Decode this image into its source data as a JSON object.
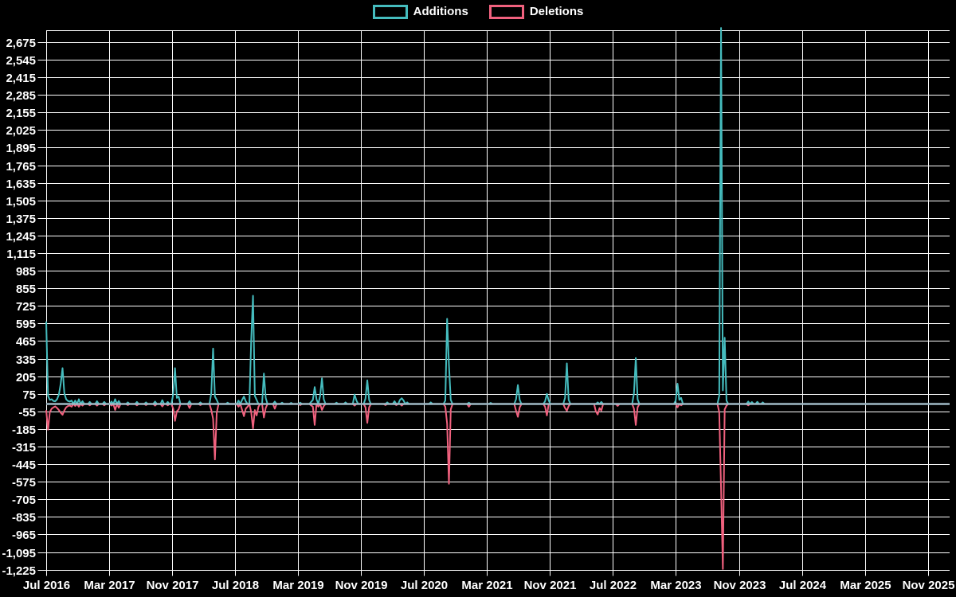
{
  "legend": {
    "items": [
      {
        "label": "Additions",
        "color": "#45bcbe",
        "key": "additions"
      },
      {
        "label": "Deletions",
        "color": "#f0617e",
        "key": "deletions"
      }
    ]
  },
  "colors": {
    "background": "#000000",
    "grid": "#ffffff",
    "text": "#ffffff",
    "zero_baseline": "#9fb9c5",
    "additions": "#45bcbe",
    "deletions": "#f0617e"
  },
  "chart_data": {
    "type": "line",
    "title": "",
    "xlabel": "",
    "ylabel": "",
    "grid": true,
    "legend_position": "top-center",
    "x_tick_labels": [
      "Jul 2016",
      "Mar 2017",
      "Nov 2017",
      "Jul 2018",
      "Mar 2019",
      "Nov 2019",
      "Jul 2020",
      "Mar 2021",
      "Nov 2021",
      "Jul 2022",
      "Mar 2023",
      "Nov 2023",
      "Jul 2024",
      "Mar 2025",
      "Nov 2025"
    ],
    "x_tick_weeks": [
      0,
      34.71,
      69.43,
      104.14,
      138.86,
      173.57,
      208.29,
      243,
      277.71,
      312.43,
      347.14,
      381.86,
      416.57,
      451.29,
      486
    ],
    "y_tick_labels": [
      "2,675",
      "2,545",
      "2,415",
      "2,285",
      "2,155",
      "2,025",
      "1,895",
      "1,765",
      "1,635",
      "1,505",
      "1,375",
      "1,245",
      "1,115",
      "985",
      "855",
      "725",
      "595",
      "465",
      "335",
      "205",
      "75",
      "-55",
      "-185",
      "-315",
      "-445",
      "-575",
      "-705",
      "-835",
      "-965",
      "-1,095",
      "-1,225"
    ],
    "ylim": [
      -1270,
      2790
    ],
    "weeks_total": 498,
    "series": [
      {
        "name": "Additions",
        "color": "#45bcbe",
        "default_value": 0,
        "points": [
          [
            0,
            610
          ],
          [
            1,
            60
          ],
          [
            2,
            30
          ],
          [
            3,
            35
          ],
          [
            4,
            22
          ],
          [
            5,
            20
          ],
          [
            6,
            35
          ],
          [
            7,
            70
          ],
          [
            8,
            150
          ],
          [
            9,
            265
          ],
          [
            10,
            80
          ],
          [
            11,
            35
          ],
          [
            12,
            22
          ],
          [
            13,
            18
          ],
          [
            14,
            25
          ],
          [
            16,
            25
          ],
          [
            18,
            35
          ],
          [
            20,
            20
          ],
          [
            24,
            15
          ],
          [
            28,
            20
          ],
          [
            32,
            15
          ],
          [
            36,
            18
          ],
          [
            38,
            35
          ],
          [
            40,
            22
          ],
          [
            45,
            12
          ],
          [
            50,
            15
          ],
          [
            55,
            12
          ],
          [
            60,
            18
          ],
          [
            64,
            28
          ],
          [
            67,
            15
          ],
          [
            70,
            70
          ],
          [
            71,
            265
          ],
          [
            72,
            45
          ],
          [
            73,
            55
          ],
          [
            79,
            20
          ],
          [
            85,
            12
          ],
          [
            91,
            80
          ],
          [
            92,
            410
          ],
          [
            93,
            55
          ],
          [
            94,
            30
          ],
          [
            100,
            10
          ],
          [
            106,
            25
          ],
          [
            108,
            30
          ],
          [
            109,
            55
          ],
          [
            110,
            20
          ],
          [
            113,
            470
          ],
          [
            114,
            800
          ],
          [
            115,
            60
          ],
          [
            116,
            30
          ],
          [
            120,
            225
          ],
          [
            121,
            45
          ],
          [
            126,
            18
          ],
          [
            130,
            10
          ],
          [
            135,
            8
          ],
          [
            140,
            10
          ],
          [
            146,
            15
          ],
          [
            147,
            30
          ],
          [
            148,
            125
          ],
          [
            149,
            35
          ],
          [
            151,
            60
          ],
          [
            152,
            190
          ],
          [
            153,
            35
          ],
          [
            160,
            10
          ],
          [
            165,
            12
          ],
          [
            170,
            70
          ],
          [
            171,
            25
          ],
          [
            176,
            40
          ],
          [
            177,
            175
          ],
          [
            178,
            30
          ],
          [
            188,
            12
          ],
          [
            192,
            20
          ],
          [
            195,
            30
          ],
          [
            196,
            42
          ],
          [
            197,
            25
          ],
          [
            199,
            12
          ],
          [
            212,
            12
          ],
          [
            220,
            25
          ],
          [
            221,
            630
          ],
          [
            222,
            290
          ],
          [
            223,
            30
          ],
          [
            233,
            10
          ],
          [
            245,
            8
          ],
          [
            259,
            35
          ],
          [
            260,
            140
          ],
          [
            261,
            30
          ],
          [
            275,
            20
          ],
          [
            276,
            75
          ],
          [
            277,
            25
          ],
          [
            286,
            45
          ],
          [
            287,
            300
          ],
          [
            288,
            30
          ],
          [
            304,
            12
          ],
          [
            306,
            15
          ],
          [
            324,
            80
          ],
          [
            325,
            340
          ],
          [
            326,
            35
          ],
          [
            347,
            25
          ],
          [
            348,
            150
          ],
          [
            349,
            30
          ],
          [
            350,
            45
          ],
          [
            371,
            60
          ],
          [
            372,
            2780
          ],
          [
            373,
            100
          ],
          [
            374,
            490
          ],
          [
            375,
            25
          ],
          [
            387,
            18
          ],
          [
            389,
            14
          ],
          [
            392,
            16
          ],
          [
            395,
            12
          ]
        ]
      },
      {
        "name": "Deletions",
        "color": "#f0617e",
        "default_value": 0,
        "points": [
          [
            0,
            -45
          ],
          [
            1,
            -190
          ],
          [
            2,
            -60
          ],
          [
            3,
            -35
          ],
          [
            4,
            -25
          ],
          [
            5,
            -18
          ],
          [
            6,
            -30
          ],
          [
            7,
            -45
          ],
          [
            8,
            -65
          ],
          [
            9,
            -80
          ],
          [
            10,
            -48
          ],
          [
            11,
            -25
          ],
          [
            12,
            -15
          ],
          [
            13,
            -12
          ],
          [
            14,
            -20
          ],
          [
            16,
            -15
          ],
          [
            18,
            -20
          ],
          [
            20,
            -12
          ],
          [
            24,
            -10
          ],
          [
            28,
            -12
          ],
          [
            32,
            -10
          ],
          [
            36,
            -12
          ],
          [
            38,
            -45
          ],
          [
            40,
            -28
          ],
          [
            45,
            -8
          ],
          [
            50,
            -10
          ],
          [
            55,
            -8
          ],
          [
            60,
            -12
          ],
          [
            64,
            -18
          ],
          [
            67,
            -10
          ],
          [
            70,
            -35
          ],
          [
            71,
            -125
          ],
          [
            72,
            -55
          ],
          [
            73,
            -40
          ],
          [
            79,
            -30
          ],
          [
            85,
            -8
          ],
          [
            91,
            -45
          ],
          [
            92,
            -110
          ],
          [
            93,
            -410
          ],
          [
            94,
            -65
          ],
          [
            106,
            -20
          ],
          [
            108,
            -45
          ],
          [
            109,
            -90
          ],
          [
            110,
            -35
          ],
          [
            111,
            -20
          ],
          [
            113,
            -60
          ],
          [
            114,
            -180
          ],
          [
            115,
            -45
          ],
          [
            116,
            -85
          ],
          [
            117,
            -20
          ],
          [
            120,
            -100
          ],
          [
            121,
            -30
          ],
          [
            126,
            -35
          ],
          [
            140,
            -8
          ],
          [
            146,
            -10
          ],
          [
            147,
            -20
          ],
          [
            148,
            -155
          ],
          [
            150,
            -20
          ],
          [
            152,
            -45
          ],
          [
            153,
            -15
          ],
          [
            170,
            -12
          ],
          [
            176,
            -25
          ],
          [
            177,
            -140
          ],
          [
            178,
            -25
          ],
          [
            187,
            -8
          ],
          [
            193,
            -8
          ],
          [
            196,
            -12
          ],
          [
            220,
            -20
          ],
          [
            221,
            -145
          ],
          [
            222,
            -590
          ],
          [
            223,
            -40
          ],
          [
            233,
            -20
          ],
          [
            259,
            -50
          ],
          [
            260,
            -95
          ],
          [
            261,
            -25
          ],
          [
            275,
            -20
          ],
          [
            276,
            -85
          ],
          [
            286,
            -30
          ],
          [
            287,
            -50
          ],
          [
            288,
            -15
          ],
          [
            303,
            -55
          ],
          [
            304,
            -78
          ],
          [
            305,
            -30
          ],
          [
            306,
            -49
          ],
          [
            315,
            -14
          ],
          [
            324,
            -35
          ],
          [
            325,
            -155
          ],
          [
            326,
            -25
          ],
          [
            348,
            -25
          ],
          [
            350,
            -10
          ],
          [
            371,
            -60
          ],
          [
            372,
            -620
          ],
          [
            373,
            -1220
          ],
          [
            374,
            -40
          ],
          [
            375,
            -12
          ],
          [
            387,
            -10
          ]
        ]
      }
    ]
  }
}
